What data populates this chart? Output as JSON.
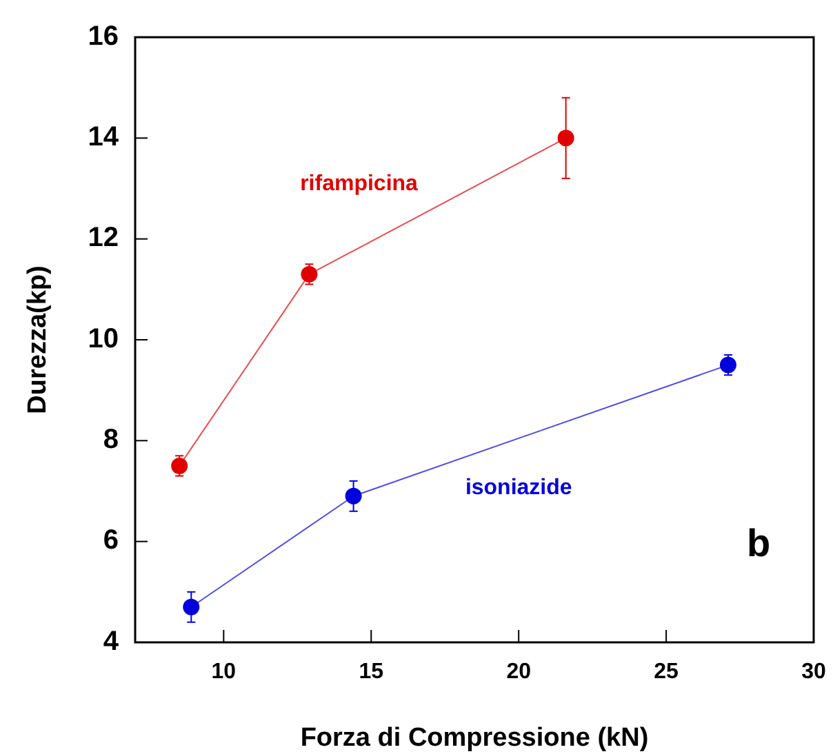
{
  "chart_data": {
    "type": "line",
    "xlabel": "Forza di Compressione (kN)",
    "ylabel": "Durezza(kp)",
    "xlim": [
      7,
      30
    ],
    "xticks": [
      10,
      15,
      20,
      25,
      30
    ],
    "ylim": [
      4,
      16
    ],
    "yticks": [
      4,
      6,
      8,
      10,
      12,
      14,
      16
    ],
    "grid": false,
    "legend": false,
    "marker": "circle",
    "line_style": "solid",
    "annotations": [
      "b"
    ],
    "series": [
      {
        "name": "rifampicina",
        "color": "#e00000",
        "x": [
          8.5,
          12.9,
          21.6
        ],
        "values": [
          7.5,
          11.3,
          14.0
        ],
        "errors": [
          0.2,
          0.2,
          0.8
        ]
      },
      {
        "name": "isoniazide",
        "color": "#0000dd",
        "x": [
          8.9,
          14.4,
          27.1
        ],
        "values": [
          4.7,
          6.9,
          9.5
        ],
        "errors": [
          0.3,
          0.3,
          0.2
        ]
      }
    ]
  }
}
